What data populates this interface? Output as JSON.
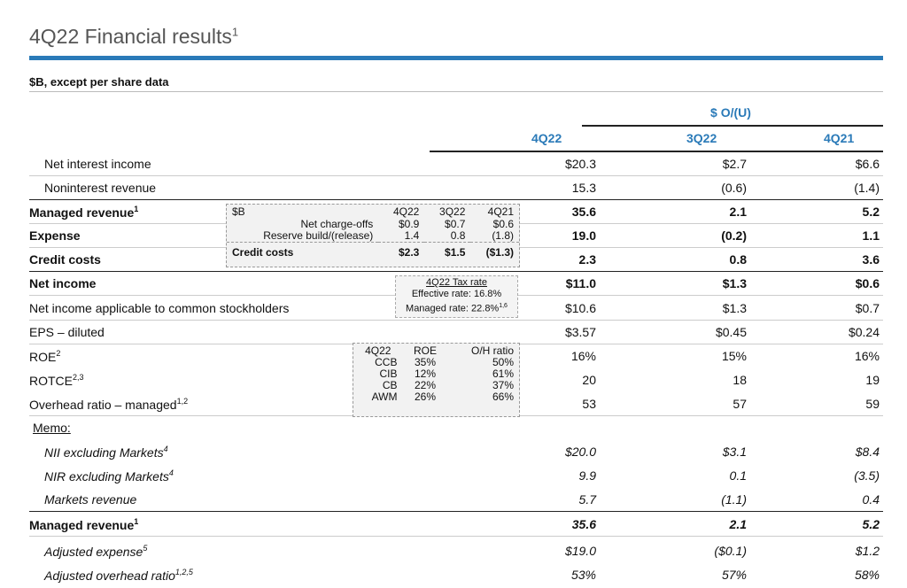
{
  "header": {
    "title": "4Q22 Financial results",
    "title_sup": "1",
    "unit": "$B, except per share data"
  },
  "columns": {
    "group": "$ O/(U)",
    "c1": "4Q22",
    "c2": "3Q22",
    "c3": "4Q21"
  },
  "rows": [
    {
      "label": "Net interest income",
      "v1": "$20.3",
      "v2": "$2.7",
      "v3": "$6.6"
    },
    {
      "label": "Noninterest revenue",
      "v1": "15.3",
      "v2": "(0.6)",
      "v3": "(1.4)"
    },
    {
      "label": "Managed revenue",
      "sup": "1",
      "v1": "35.6",
      "v2": "2.1",
      "v3": "5.2"
    },
    {
      "label": "Expense",
      "v1": "19.0",
      "v2": "(0.2)",
      "v3": "1.1"
    },
    {
      "label": "Credit costs",
      "v1": "2.3",
      "v2": "0.8",
      "v3": "3.6"
    },
    {
      "label": "Net income",
      "v1": "$11.0",
      "v2": "$1.3",
      "v3": "$0.6"
    },
    {
      "label": "Net income applicable to common stockholders",
      "v1": "$10.6",
      "v2": "$1.3",
      "v3": "$0.7"
    },
    {
      "label": "EPS – diluted",
      "v1": "$3.57",
      "v2": "$0.45",
      "v3": "$0.24"
    },
    {
      "label": "ROE",
      "sup": "2",
      "v1": "16%",
      "v2": "15%",
      "v3": "16%"
    },
    {
      "label": "ROTCE",
      "sup": "2,3",
      "v1": "20",
      "v2": "18",
      "v3": "19"
    },
    {
      "label": "Overhead ratio – managed",
      "sup": "1,2",
      "v1": "53",
      "v2": "57",
      "v3": "59"
    }
  ],
  "memo_label": "Memo:",
  "memo_rows": [
    {
      "label": "NII excluding Markets",
      "sup": "4",
      "v1": "$20.0",
      "v2": "$3.1",
      "v3": "$8.4"
    },
    {
      "label": "NIR excluding Markets",
      "sup": "4",
      "v1": "9.9",
      "v2": "0.1",
      "v3": "(3.5)"
    },
    {
      "label": "Markets revenue",
      "v1": "5.7",
      "v2": "(1.1)",
      "v3": "0.4"
    },
    {
      "label": "Managed revenue",
      "sup": "1",
      "v1": "35.6",
      "v2": "2.1",
      "v3": "5.2"
    },
    {
      "label": "Adjusted expense",
      "sup": "5",
      "v1": "$19.0",
      "v2": "($0.1)",
      "v3": "$1.2"
    },
    {
      "label": "Adjusted overhead ratio",
      "sup": "1,2,5",
      "v1": "53%",
      "v2": "57%",
      "v3": "58%"
    }
  ],
  "credit_box": {
    "head": [
      "$B",
      "4Q22",
      "3Q22",
      "4Q21"
    ],
    "rows": [
      [
        "Net charge-offs",
        "$0.9",
        "$0.7",
        "$0.6"
      ],
      [
        "Reserve build/(release)",
        "1.4",
        "0.8",
        "(1.8)"
      ],
      [
        "Credit costs",
        "$2.3",
        "$1.5",
        "($1.3)"
      ]
    ]
  },
  "tax_box": {
    "title": "4Q22 Tax rate",
    "effective": "Effective rate: 16.8%",
    "managed": "Managed rate: 22.8%",
    "managed_sup": "1,6"
  },
  "roe_box": {
    "head": [
      "4Q22",
      "ROE",
      "O/H ratio"
    ],
    "rows": [
      [
        "CCB",
        "35%",
        "50%"
      ],
      [
        "CIB",
        "12%",
        "61%"
      ],
      [
        "CB",
        "22%",
        "37%"
      ],
      [
        "AWM",
        "26%",
        "66%"
      ]
    ]
  }
}
